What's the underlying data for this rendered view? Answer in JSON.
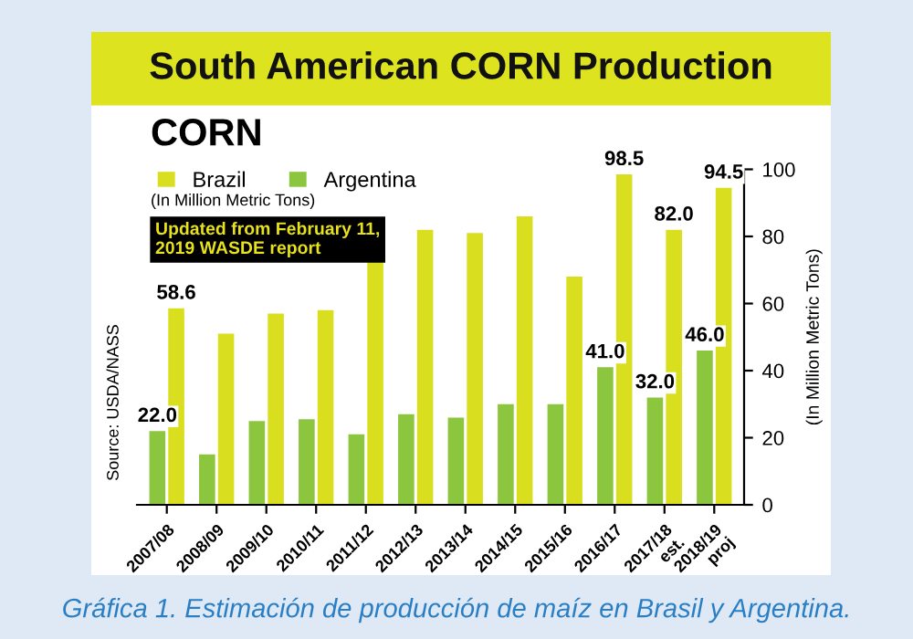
{
  "chart_data": {
    "type": "bar",
    "title": "South American CORN Production",
    "subtitle": "CORN",
    "ylabel": "(In Million Metric Tons)",
    "categories": [
      "2007/08",
      "2008/09",
      "2009/10",
      "2010/11",
      "2011/12",
      "2012/13",
      "2013/14",
      "2014/15",
      "2015/16",
      "2016/17",
      "2017/18\nest.",
      "2018/19\nproj"
    ],
    "series": [
      {
        "name": "Brazil",
        "color": "#d9df1f",
        "values": [
          58.6,
          51,
          57,
          58,
          73,
          82,
          81,
          86,
          68,
          98.5,
          82.0,
          94.5
        ],
        "value_labels": [
          "58.6",
          null,
          null,
          null,
          null,
          null,
          null,
          null,
          null,
          "98.5",
          "82.0",
          "94.5"
        ]
      },
      {
        "name": "Argentina",
        "color": "#8cc63f",
        "values": [
          22.0,
          15,
          25,
          25.5,
          21,
          27,
          26,
          30,
          30,
          41.0,
          32.0,
          46.0
        ],
        "value_labels": [
          "22.0",
          null,
          null,
          null,
          null,
          null,
          null,
          null,
          null,
          "41.0",
          "32.0",
          "46.0"
        ]
      }
    ],
    "ylim": [
      0,
      100
    ],
    "yticks": [
      0,
      20,
      40,
      60,
      80,
      100
    ],
    "grid": false,
    "legend": "top left",
    "annotations": [
      "(In Million Metric Tons)",
      "Updated from February 11,\n2019 WASDE report",
      "Source: USDA/NASS",
      "Gráfica 1. Estimación de producción de maíz en Brasil y Argentina."
    ]
  }
}
